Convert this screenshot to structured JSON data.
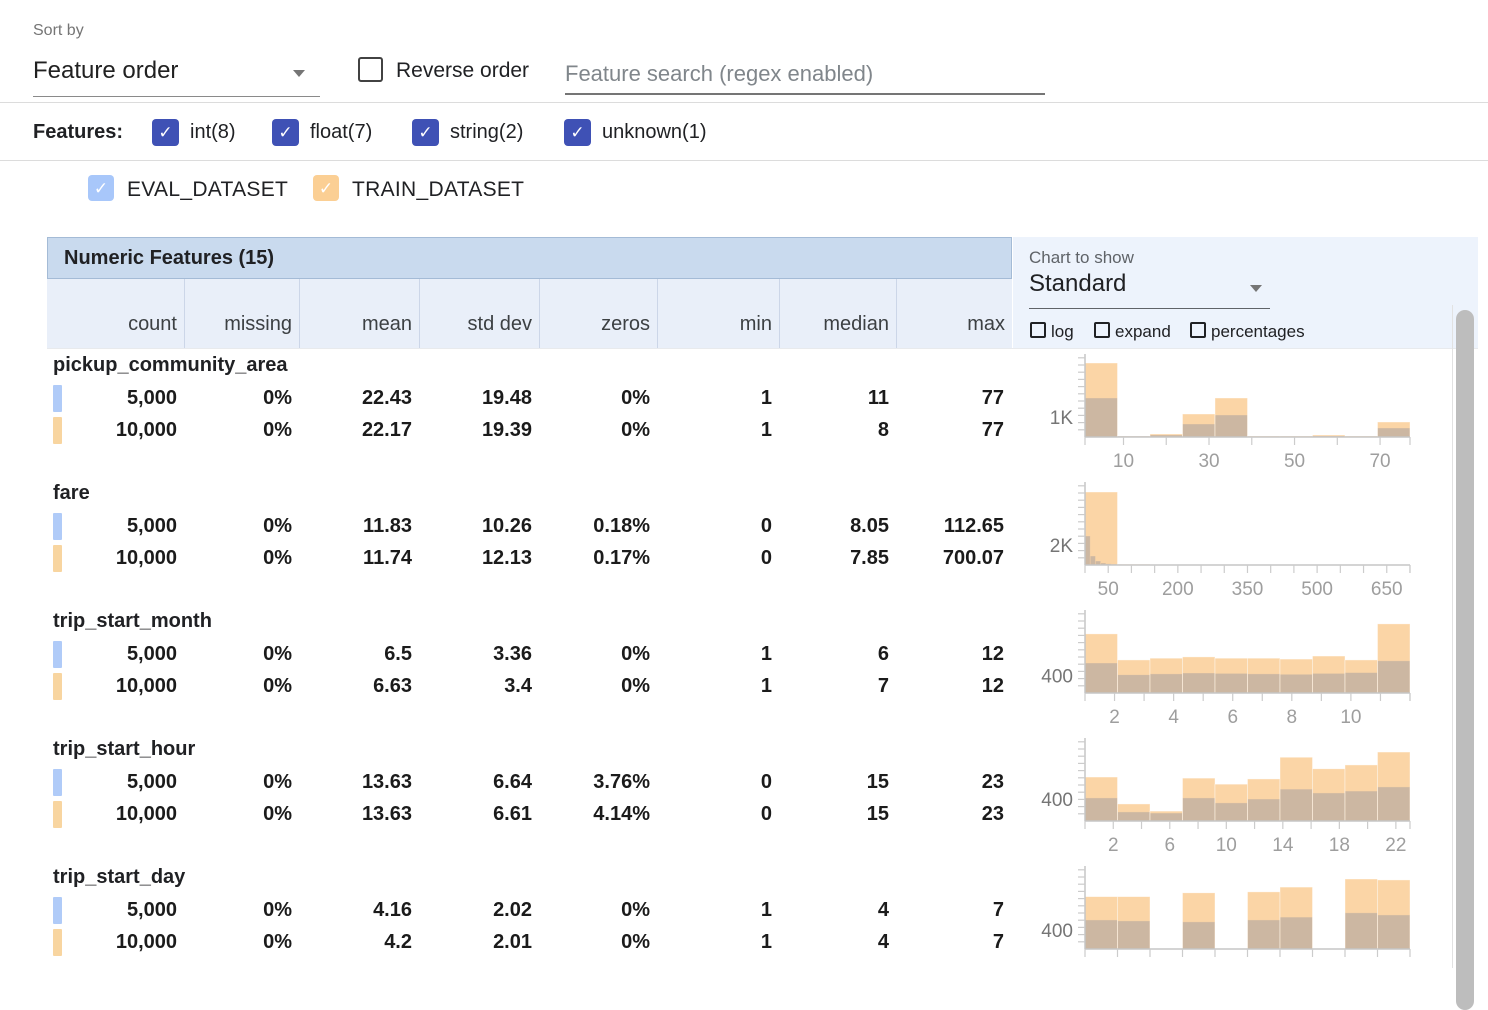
{
  "toolbar": {
    "sort_by_label": "Sort by",
    "sort_by_value": "Feature order",
    "reverse_order_label": "Reverse order",
    "search_placeholder": "Feature search (regex enabled)"
  },
  "filters": {
    "label": "Features:",
    "types": [
      {
        "label": "int(8)",
        "checked": true
      },
      {
        "label": "float(7)",
        "checked": true
      },
      {
        "label": "string(2)",
        "checked": true
      },
      {
        "label": "unknown(1)",
        "checked": true
      }
    ]
  },
  "datasets": [
    {
      "name": "EVAL_DATASET",
      "checked": true
    },
    {
      "name": "TRAIN_DATASET",
      "checked": true
    }
  ],
  "table": {
    "title": "Numeric Features (15)",
    "columns": [
      "count",
      "missing",
      "mean",
      "std dev",
      "zeros",
      "min",
      "median",
      "max"
    ]
  },
  "chart_controls": {
    "label": "Chart to show",
    "selected": "Standard",
    "options": [
      {
        "label": "log",
        "checked": false
      },
      {
        "label": "expand",
        "checked": false
      },
      {
        "label": "percentages",
        "checked": false
      }
    ]
  },
  "features": [
    {
      "name": "pickup_community_area",
      "rows": [
        {
          "dataset": "eval",
          "count": "5,000",
          "missing": "0%",
          "mean": "22.43",
          "std_dev": "19.48",
          "zeros": "0%",
          "min": "1",
          "median": "11",
          "max": "77"
        },
        {
          "dataset": "train",
          "count": "10,000",
          "missing": "0%",
          "mean": "22.17",
          "std_dev": "19.39",
          "zeros": "0%",
          "min": "1",
          "median": "8",
          "max": "77"
        }
      ]
    },
    {
      "name": "fare",
      "rows": [
        {
          "dataset": "eval",
          "count": "5,000",
          "missing": "0%",
          "mean": "11.83",
          "std_dev": "10.26",
          "zeros": "0.18%",
          "min": "0",
          "median": "8.05",
          "max": "112.65"
        },
        {
          "dataset": "train",
          "count": "10,000",
          "missing": "0%",
          "mean": "11.74",
          "std_dev": "12.13",
          "zeros": "0.17%",
          "min": "0",
          "median": "7.85",
          "max": "700.07"
        }
      ]
    },
    {
      "name": "trip_start_month",
      "rows": [
        {
          "dataset": "eval",
          "count": "5,000",
          "missing": "0%",
          "mean": "6.5",
          "std_dev": "3.36",
          "zeros": "0%",
          "min": "1",
          "median": "6",
          "max": "12"
        },
        {
          "dataset": "train",
          "count": "10,000",
          "missing": "0%",
          "mean": "6.63",
          "std_dev": "3.4",
          "zeros": "0%",
          "min": "1",
          "median": "7",
          "max": "12"
        }
      ]
    },
    {
      "name": "trip_start_hour",
      "rows": [
        {
          "dataset": "eval",
          "count": "5,000",
          "missing": "0%",
          "mean": "13.63",
          "std_dev": "6.64",
          "zeros": "3.76%",
          "min": "0",
          "median": "15",
          "max": "23"
        },
        {
          "dataset": "train",
          "count": "10,000",
          "missing": "0%",
          "mean": "13.63",
          "std_dev": "6.61",
          "zeros": "4.14%",
          "min": "0",
          "median": "15",
          "max": "23"
        }
      ]
    },
    {
      "name": "trip_start_day",
      "rows": [
        {
          "dataset": "eval",
          "count": "5,000",
          "missing": "0%",
          "mean": "4.16",
          "std_dev": "2.02",
          "zeros": "0%",
          "min": "1",
          "median": "4",
          "max": "7"
        },
        {
          "dataset": "train",
          "count": "10,000",
          "missing": "0%",
          "mean": "4.2",
          "std_dev": "2.01",
          "zeros": "0%",
          "min": "1",
          "median": "4",
          "max": "7"
        }
      ]
    }
  ],
  "chart_data": [
    {
      "type": "bar",
      "feature": "pickup_community_area",
      "axis_range": [
        1,
        77
      ],
      "y_max": 4000,
      "y_axis_tick": {
        "text": "1K",
        "value": 1000
      },
      "x_ticks": [
        10,
        20,
        30,
        40,
        50,
        60,
        70
      ],
      "x_tick_labels": [
        10,
        30,
        50,
        70
      ],
      "series": [
        {
          "name": "EVAL_DATASET",
          "range": [
            1,
            77
          ],
          "counts": [
            1950,
            50,
            100,
            650,
            1100,
            25,
            25,
            50,
            25,
            450
          ]
        },
        {
          "name": "TRAIN_DATASET",
          "range": [
            1,
            77
          ],
          "counts": [
            3700,
            50,
            150,
            1150,
            1950,
            50,
            50,
            100,
            50,
            750
          ]
        }
      ]
    },
    {
      "type": "bar",
      "feature": "fare",
      "axis_range": [
        0,
        700.07
      ],
      "y_max": 8000,
      "y_axis_tick": {
        "text": "2K",
        "value": 2000
      },
      "x_ticks": [
        50,
        100,
        150,
        200,
        250,
        300,
        350,
        400,
        450,
        500,
        550,
        600,
        650,
        700
      ],
      "x_tick_labels": [
        50,
        200,
        350,
        500,
        650
      ],
      "series": [
        {
          "name": "EVAL_DATASET",
          "range": [
            0,
            112.65
          ],
          "counts": [
            2900,
            900,
            400,
            200,
            120,
            80,
            60,
            40,
            30,
            20
          ]
        },
        {
          "name": "TRAIN_DATASET",
          "range": [
            0,
            700.07
          ],
          "counts": [
            7300,
            80,
            40,
            30,
            20,
            15,
            10,
            10,
            5,
            5
          ]
        }
      ]
    },
    {
      "type": "bar",
      "feature": "trip_start_month",
      "axis_range": [
        1,
        12
      ],
      "y_max": 1840,
      "y_axis_tick": {
        "text": "400",
        "value": 400
      },
      "x_ticks": [
        2,
        3,
        4,
        5,
        6,
        7,
        8,
        9,
        10,
        11,
        12
      ],
      "x_tick_labels": [
        2,
        4,
        6,
        8,
        10
      ],
      "series": [
        {
          "name": "EVAL_DATASET",
          "range": [
            1,
            12
          ],
          "counts": [
            690,
            420,
            440,
            460,
            450,
            440,
            430,
            450,
            470,
            740
          ]
        },
        {
          "name": "TRAIN_DATASET",
          "range": [
            1,
            12
          ],
          "counts": [
            1360,
            760,
            800,
            830,
            800,
            800,
            780,
            850,
            760,
            1590
          ]
        }
      ]
    },
    {
      "type": "bar",
      "feature": "trip_start_hour",
      "axis_range": [
        0,
        23
      ],
      "y_max": 1456,
      "y_axis_tick": {
        "text": "400",
        "value": 400
      },
      "x_ticks": [
        2,
        4,
        6,
        8,
        10,
        12,
        14,
        16,
        18,
        20,
        22
      ],
      "x_tick_labels": [
        2,
        6,
        10,
        14,
        18,
        22
      ],
      "series": [
        {
          "name": "EVAL_DATASET",
          "range": [
            0,
            23
          ],
          "counts": [
            420,
            165,
            145,
            420,
            330,
            400,
            580,
            510,
            545,
            620
          ]
        },
        {
          "name": "TRAIN_DATASET",
          "range": [
            0,
            23
          ],
          "counts": [
            800,
            310,
            180,
            780,
            670,
            765,
            1160,
            950,
            1020,
            1255
          ]
        }
      ]
    },
    {
      "type": "bar",
      "feature": "trip_start_day",
      "axis_range": [
        1,
        7
      ],
      "y_max": 1680,
      "y_axis_tick": {
        "text": "400",
        "value": 400
      },
      "x_ticks": [
        1.6,
        2.2,
        2.8,
        3.4,
        4.0,
        4.6,
        5.2,
        5.8,
        6.4
      ],
      "x_tick_labels": [],
      "series": [
        {
          "name": "EVAL_DATASET",
          "range": [
            1,
            7
          ],
          "counts": [
            610,
            590,
            0,
            570,
            0,
            610,
            670,
            0,
            760,
            715
          ]
        },
        {
          "name": "TRAIN_DATASET",
          "range": [
            1,
            7
          ],
          "counts": [
            1100,
            1100,
            0,
            1180,
            0,
            1200,
            1300,
            0,
            1470,
            1450
          ]
        }
      ]
    }
  ],
  "colors": {
    "accent_checkbox": "#3f51b5",
    "eval_checkbox": "#a8c7fa",
    "train_checkbox": "#fbcf94",
    "eval_marker": "#b0cbf8",
    "train_marker": "#f8d5a0",
    "hist_eval_fill": "#b3cef8",
    "hist_train_fill": "rgba(245,147,27,0.39)",
    "table_title_bg": "#c9daee",
    "column_header_bg": "#e9eff9",
    "panel_bg": "#edf3fc"
  }
}
